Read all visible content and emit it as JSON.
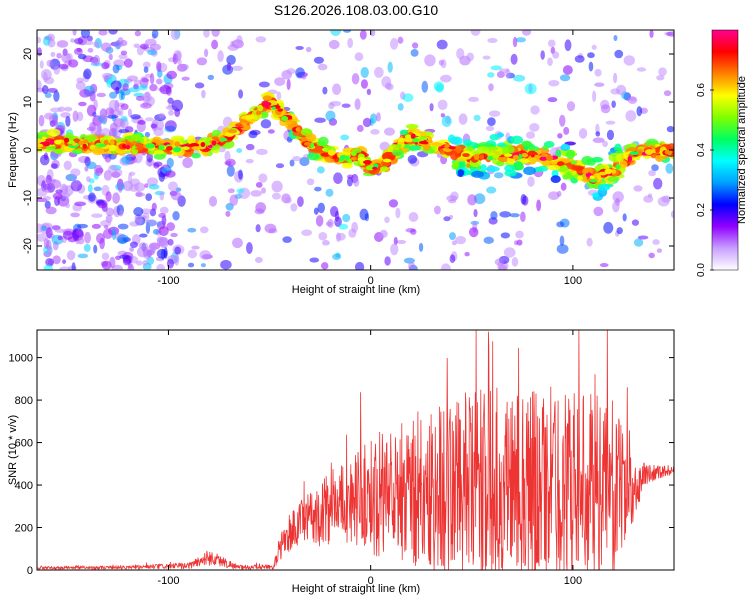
{
  "title": "S126.2026.108.03.00.G10",
  "chart_data": [
    {
      "type": "heatmap",
      "name": "spectrogram",
      "xlabel": "Height of straight line (km)",
      "ylabel": "Frequency (Hz)",
      "xlim": [
        -165,
        150
      ],
      "ylim": [
        -25,
        25
      ],
      "xticks": [
        -100,
        0,
        100
      ],
      "yticks": [
        -20,
        -10,
        0,
        10,
        20
      ],
      "colorbar": {
        "label": "Normalized spectral amplitude",
        "range": [
          0,
          0.8
        ],
        "ticks": [
          0.0,
          0.2,
          0.4,
          0.6
        ],
        "colormap": [
          "#ffffff",
          "#c8a0ff",
          "#9000ff",
          "#0000ff",
          "#00a0ff",
          "#00ffff",
          "#00ff60",
          "#80ff00",
          "#ffff00",
          "#ff8000",
          "#ff0000",
          "#ff0090"
        ]
      },
      "ridge": {
        "x": [
          -165,
          -150,
          -130,
          -110,
          -90,
          -80,
          -70,
          -62,
          -57,
          -50,
          -45,
          -38,
          -30,
          -20,
          -12,
          -5,
          0,
          7,
          12,
          20,
          30,
          40,
          50,
          60,
          70,
          80,
          90,
          100,
          110,
          120,
          130,
          140,
          150
        ],
        "freq": [
          2,
          1.5,
          1,
          1,
          0.5,
          1,
          3,
          6,
          7.5,
          10,
          8,
          5,
          1,
          -1,
          -2,
          -1,
          -4,
          -3,
          0,
          3,
          1,
          0,
          -2,
          -1,
          -1,
          -1,
          -2,
          -3,
          -6,
          -4,
          -1,
          0,
          0
        ]
      }
    },
    {
      "type": "line",
      "name": "snr",
      "xlabel": "Height of straight line (km)",
      "ylabel": "SNR (10 * v/v)",
      "xlim": [
        -165,
        150
      ],
      "ylim": [
        0,
        1130
      ],
      "xticks": [
        -100,
        0,
        100
      ],
      "yticks": [
        0,
        200,
        400,
        600,
        800,
        1000
      ],
      "color": "#ee3333",
      "envelope": {
        "x": [
          -165,
          -120,
          -90,
          -80,
          -75,
          -65,
          -48,
          -45,
          -40,
          -30,
          -25,
          -20,
          -10,
          0,
          10,
          20,
          30,
          40,
          50,
          60,
          70,
          80,
          90,
          100,
          110,
          120,
          130,
          135,
          140,
          150
        ],
        "mean": [
          10,
          12,
          20,
          60,
          45,
          12,
          15,
          100,
          180,
          250,
          260,
          300,
          330,
          350,
          360,
          380,
          370,
          380,
          390,
          400,
          410,
          400,
          410,
          400,
          390,
          380,
          360,
          450,
          460,
          470
        ],
        "amp": [
          6,
          8,
          15,
          40,
          30,
          10,
          10,
          60,
          100,
          120,
          150,
          180,
          200,
          280,
          320,
          380,
          420,
          450,
          450,
          460,
          470,
          470,
          460,
          450,
          440,
          420,
          150,
          60,
          40,
          20
        ]
      }
    }
  ]
}
